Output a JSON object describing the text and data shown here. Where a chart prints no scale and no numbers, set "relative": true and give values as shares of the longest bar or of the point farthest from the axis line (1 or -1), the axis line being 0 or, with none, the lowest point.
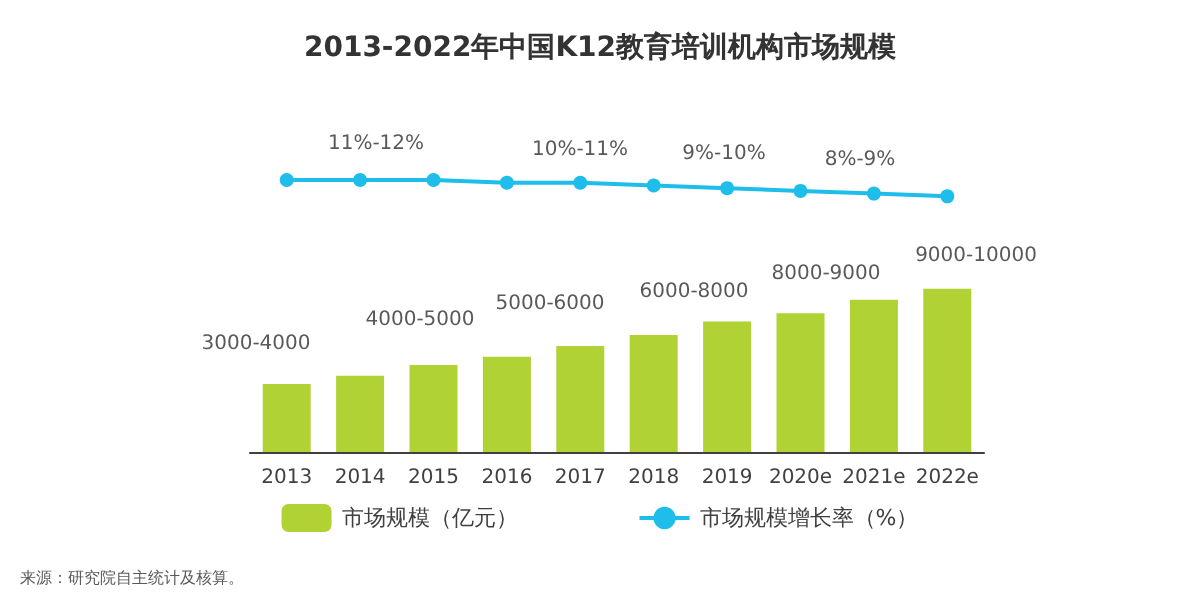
{
  "chart_data": {
    "type": "bar",
    "title": "2013-2022年中国K12教育培训机构市场规模",
    "relative": true,
    "categories": [
      "2013",
      "2014",
      "2015",
      "2016",
      "2017",
      "2018",
      "2019",
      "2020e",
      "2021e",
      "2022e"
    ],
    "series": [
      {
        "name": "市场规模（亿元）",
        "color": "#b0d235",
        "values": [
          0.25,
          0.28,
          0.32,
          0.35,
          0.39,
          0.43,
          0.48,
          0.51,
          0.56,
          0.6
        ]
      },
      {
        "name": "市场规模增长率（%）",
        "type": "line",
        "color": "#1ebdea",
        "values": [
          1,
          1,
          1,
          0.99,
          0.99,
          0.98,
          0.97,
          0.96,
          0.95,
          0.94
        ]
      }
    ],
    "marker": "circle",
    "legend": "bottom",
    "annotations": [
      "11%-12%",
      "10%-11%",
      "9%-10%",
      "8%-9%",
      "3000-4000",
      "4000-5000",
      "5000-6000",
      "6000-8000",
      "8000-9000",
      "9000-10000",
      "来源：研究院自主统计及核算。"
    ]
  }
}
